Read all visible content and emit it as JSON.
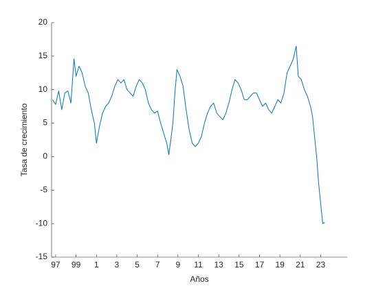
{
  "chart_data": {
    "type": "line",
    "xlabel": "Años",
    "ylabel": "Tasa de crecimiento",
    "xlim": [
      1996.6,
      2025.6
    ],
    "ylim": [
      -15,
      20
    ],
    "xticks": [
      {
        "value": 1997,
        "label": "97"
      },
      {
        "value": 1999,
        "label": "99"
      },
      {
        "value": 2001,
        "label": "1"
      },
      {
        "value": 2003,
        "label": "3"
      },
      {
        "value": 2005,
        "label": "5"
      },
      {
        "value": 2007,
        "label": "7"
      },
      {
        "value": 2009,
        "label": "9"
      },
      {
        "value": 2011,
        "label": "11"
      },
      {
        "value": 2013,
        "label": "13"
      },
      {
        "value": 2015,
        "label": "15"
      },
      {
        "value": 2017,
        "label": "17"
      },
      {
        "value": 2019,
        "label": "19"
      },
      {
        "value": 2021,
        "label": "21"
      },
      {
        "value": 2023,
        "label": "23"
      }
    ],
    "yticks": [
      -15,
      -10,
      -5,
      0,
      5,
      10,
      15,
      20
    ],
    "grid": false,
    "color": "#0072bd",
    "x": [
      1996.7,
      1997.0,
      1997.3,
      1997.6,
      1997.9,
      1998.2,
      1998.5,
      1998.8,
      1999.0,
      1999.3,
      1999.6,
      1999.9,
      2000.2,
      2000.5,
      2000.8,
      2001.0,
      2001.3,
      2001.6,
      2001.9,
      2002.2,
      2002.5,
      2002.8,
      2003.1,
      2003.4,
      2003.7,
      2004.0,
      2004.3,
      2004.6,
      2004.9,
      2005.2,
      2005.5,
      2005.8,
      2006.1,
      2006.4,
      2006.7,
      2007.0,
      2007.3,
      2007.6,
      2007.9,
      2008.1,
      2008.3,
      2008.5,
      2008.7,
      2008.9,
      2009.2,
      2009.5,
      2009.8,
      2010.1,
      2010.4,
      2010.7,
      2011.0,
      2011.3,
      2011.6,
      2011.9,
      2012.2,
      2012.5,
      2012.8,
      2013.1,
      2013.4,
      2013.7,
      2014.0,
      2014.3,
      2014.6,
      2014.9,
      2015.2,
      2015.5,
      2015.8,
      2016.1,
      2016.4,
      2016.7,
      2017.0,
      2017.3,
      2017.6,
      2017.9,
      2018.2,
      2018.5,
      2018.8,
      2019.1,
      2019.4,
      2019.7,
      2020.0,
      2020.3,
      2020.6,
      2020.8,
      2021.1,
      2021.4,
      2021.7,
      2022.0,
      2022.2,
      2022.4,
      2022.6,
      2022.8,
      2023.0,
      2023.2,
      2023.4
    ],
    "values": [
      8.5,
      7.8,
      9.8,
      7.0,
      9.5,
      9.8,
      8.0,
      14.6,
      12.0,
      13.5,
      12.5,
      10.5,
      9.5,
      7.0,
      5.0,
      2.0,
      4.5,
      6.5,
      7.5,
      8.0,
      9.0,
      10.5,
      11.5,
      11.0,
      11.5,
      10.0,
      9.5,
      9.0,
      10.5,
      11.5,
      11.0,
      10.0,
      8.0,
      7.0,
      6.5,
      6.8,
      5.0,
      3.5,
      2.0,
      0.3,
      2.5,
      5.0,
      9.5,
      13.0,
      12.0,
      10.5,
      7.0,
      4.0,
      2.0,
      1.5,
      2.0,
      3.0,
      5.0,
      6.5,
      7.5,
      8.0,
      6.5,
      6.0,
      5.5,
      6.5,
      8.0,
      10.0,
      11.5,
      11.0,
      10.0,
      8.5,
      8.5,
      9.0,
      9.5,
      9.5,
      8.5,
      7.5,
      8.0,
      7.0,
      6.5,
      7.5,
      8.5,
      8.0,
      9.5,
      12.5,
      13.5,
      14.5,
      16.5,
      12.0,
      11.5,
      10.0,
      9.0,
      7.5,
      6.0,
      3.0,
      0.0,
      -4.0,
      -7.0,
      -10.0,
      -9.8
    ]
  }
}
